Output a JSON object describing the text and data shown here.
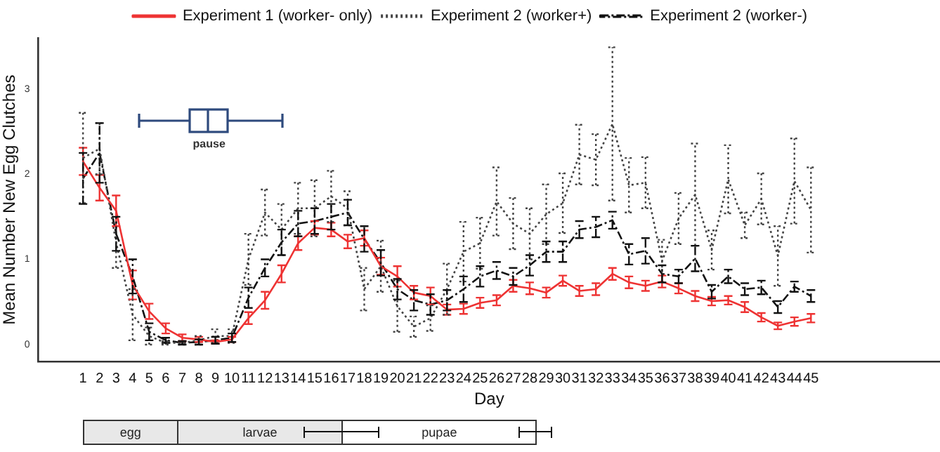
{
  "chart_data": [
    {
      "type": "line",
      "xlabel": "Day",
      "ylabel": "Mean Number New Egg Clutches",
      "x": [
        1,
        2,
        3,
        4,
        5,
        6,
        7,
        8,
        9,
        10,
        11,
        12,
        13,
        14,
        15,
        16,
        17,
        18,
        19,
        20,
        21,
        22,
        23,
        24,
        25,
        26,
        27,
        28,
        29,
        30,
        31,
        32,
        33,
        34,
        35,
        36,
        37,
        38,
        39,
        40,
        41,
        42,
        43,
        44,
        45
      ],
      "xlim": [
        -1.7,
        52.8
      ],
      "xticks": [
        1,
        2,
        3,
        4,
        5,
        6,
        7,
        8,
        9,
        10,
        11,
        12,
        13,
        14,
        15,
        16,
        17,
        18,
        19,
        20,
        21,
        22,
        23,
        24,
        25,
        26,
        27,
        28,
        29,
        30,
        31,
        32,
        33,
        34,
        35,
        36,
        37,
        38,
        39,
        40,
        41,
        42,
        43,
        44,
        45
      ],
      "ylim": [
        -0.2,
        3.6
      ],
      "yticks": [
        0,
        1,
        2,
        3
      ],
      "grid": false,
      "legend": "top",
      "series": [
        {
          "name": "Experiment 1 (worker- only)",
          "color": "#ee3333",
          "line_style": "solid",
          "values": [
            2.15,
            1.84,
            1.57,
            0.7,
            0.39,
            0.19,
            0.08,
            0.06,
            0.03,
            0.06,
            0.31,
            0.52,
            0.83,
            1.19,
            1.37,
            1.35,
            1.21,
            1.25,
            0.92,
            0.8,
            0.61,
            0.57,
            0.41,
            0.42,
            0.49,
            0.52,
            0.69,
            0.66,
            0.61,
            0.75,
            0.63,
            0.65,
            0.83,
            0.73,
            0.69,
            0.74,
            0.66,
            0.57,
            0.51,
            0.52,
            0.44,
            0.32,
            0.22,
            0.27,
            0.31
          ],
          "errors": [
            0.16,
            0.15,
            0.18,
            0.17,
            0.09,
            0.06,
            0.04,
            0.03,
            0.02,
            0.03,
            0.07,
            0.1,
            0.1,
            0.08,
            0.08,
            0.08,
            0.08,
            0.09,
            0.1,
            0.12,
            0.08,
            0.1,
            0.06,
            0.06,
            0.06,
            0.06,
            0.07,
            0.07,
            0.06,
            0.06,
            0.06,
            0.07,
            0.07,
            0.07,
            0.06,
            0.07,
            0.06,
            0.06,
            0.05,
            0.05,
            0.06,
            0.05,
            0.04,
            0.05,
            0.05
          ]
        },
        {
          "name": "Experiment 2 (worker+)",
          "color": "#444444",
          "line_style": "dotted",
          "values": [
            2.19,
            2.3,
            1.2,
            0.35,
            0.1,
            0.02,
            0.02,
            0.05,
            0.1,
            0.1,
            1.0,
            1.55,
            1.35,
            1.6,
            1.6,
            1.74,
            1.6,
            0.65,
            0.92,
            0.45,
            0.21,
            0.31,
            0.65,
            1.09,
            1.19,
            1.68,
            1.42,
            1.3,
            1.53,
            1.66,
            2.23,
            2.17,
            2.59,
            1.87,
            1.9,
            0.98,
            1.48,
            1.76,
            1.11,
            1.94,
            1.4,
            1.71,
            1.04,
            1.92,
            1.58
          ],
          "errors": [
            0.53,
            0.3,
            0.3,
            0.3,
            0.1,
            0.02,
            0.02,
            0.05,
            0.08,
            0.08,
            0.3,
            0.27,
            0.3,
            0.3,
            0.33,
            0.3,
            0.2,
            0.25,
            0.3,
            0.3,
            0.12,
            0.15,
            0.3,
            0.35,
            0.3,
            0.4,
            0.3,
            0.3,
            0.35,
            0.35,
            0.35,
            0.3,
            0.9,
            0.32,
            0.3,
            0.25,
            0.3,
            0.6,
            0.23,
            0.4,
            0.15,
            0.3,
            0.35,
            0.5,
            0.5
          ]
        },
        {
          "name": "Experiment 2 (worker-)",
          "color": "#111111",
          "line_style": "dashed",
          "values": [
            1.95,
            2.25,
            1.3,
            0.8,
            0.15,
            0.05,
            0.02,
            0.03,
            0.05,
            0.08,
            0.55,
            0.9,
            1.2,
            1.42,
            1.45,
            1.5,
            1.55,
            1.24,
            0.96,
            0.65,
            0.52,
            0.47,
            0.52,
            0.65,
            0.8,
            0.87,
            0.8,
            0.93,
            1.09,
            1.09,
            1.35,
            1.38,
            1.46,
            1.06,
            1.1,
            0.83,
            0.8,
            1.01,
            0.62,
            0.8,
            0.65,
            0.67,
            0.44,
            0.68,
            0.57
          ],
          "errors": [
            0.3,
            0.35,
            0.2,
            0.2,
            0.1,
            0.03,
            0.02,
            0.03,
            0.04,
            0.05,
            0.12,
            0.1,
            0.15,
            0.15,
            0.15,
            0.15,
            0.15,
            0.15,
            0.15,
            0.12,
            0.12,
            0.12,
            0.12,
            0.15,
            0.12,
            0.1,
            0.1,
            0.12,
            0.12,
            0.12,
            0.1,
            0.12,
            0.1,
            0.12,
            0.15,
            0.1,
            0.08,
            0.15,
            0.08,
            0.08,
            0.07,
            0.08,
            0.07,
            0.06,
            0.07
          ]
        }
      ],
      "annotations": [
        "pause",
        "egg",
        "larvae",
        "pupae"
      ]
    }
  ]
}
